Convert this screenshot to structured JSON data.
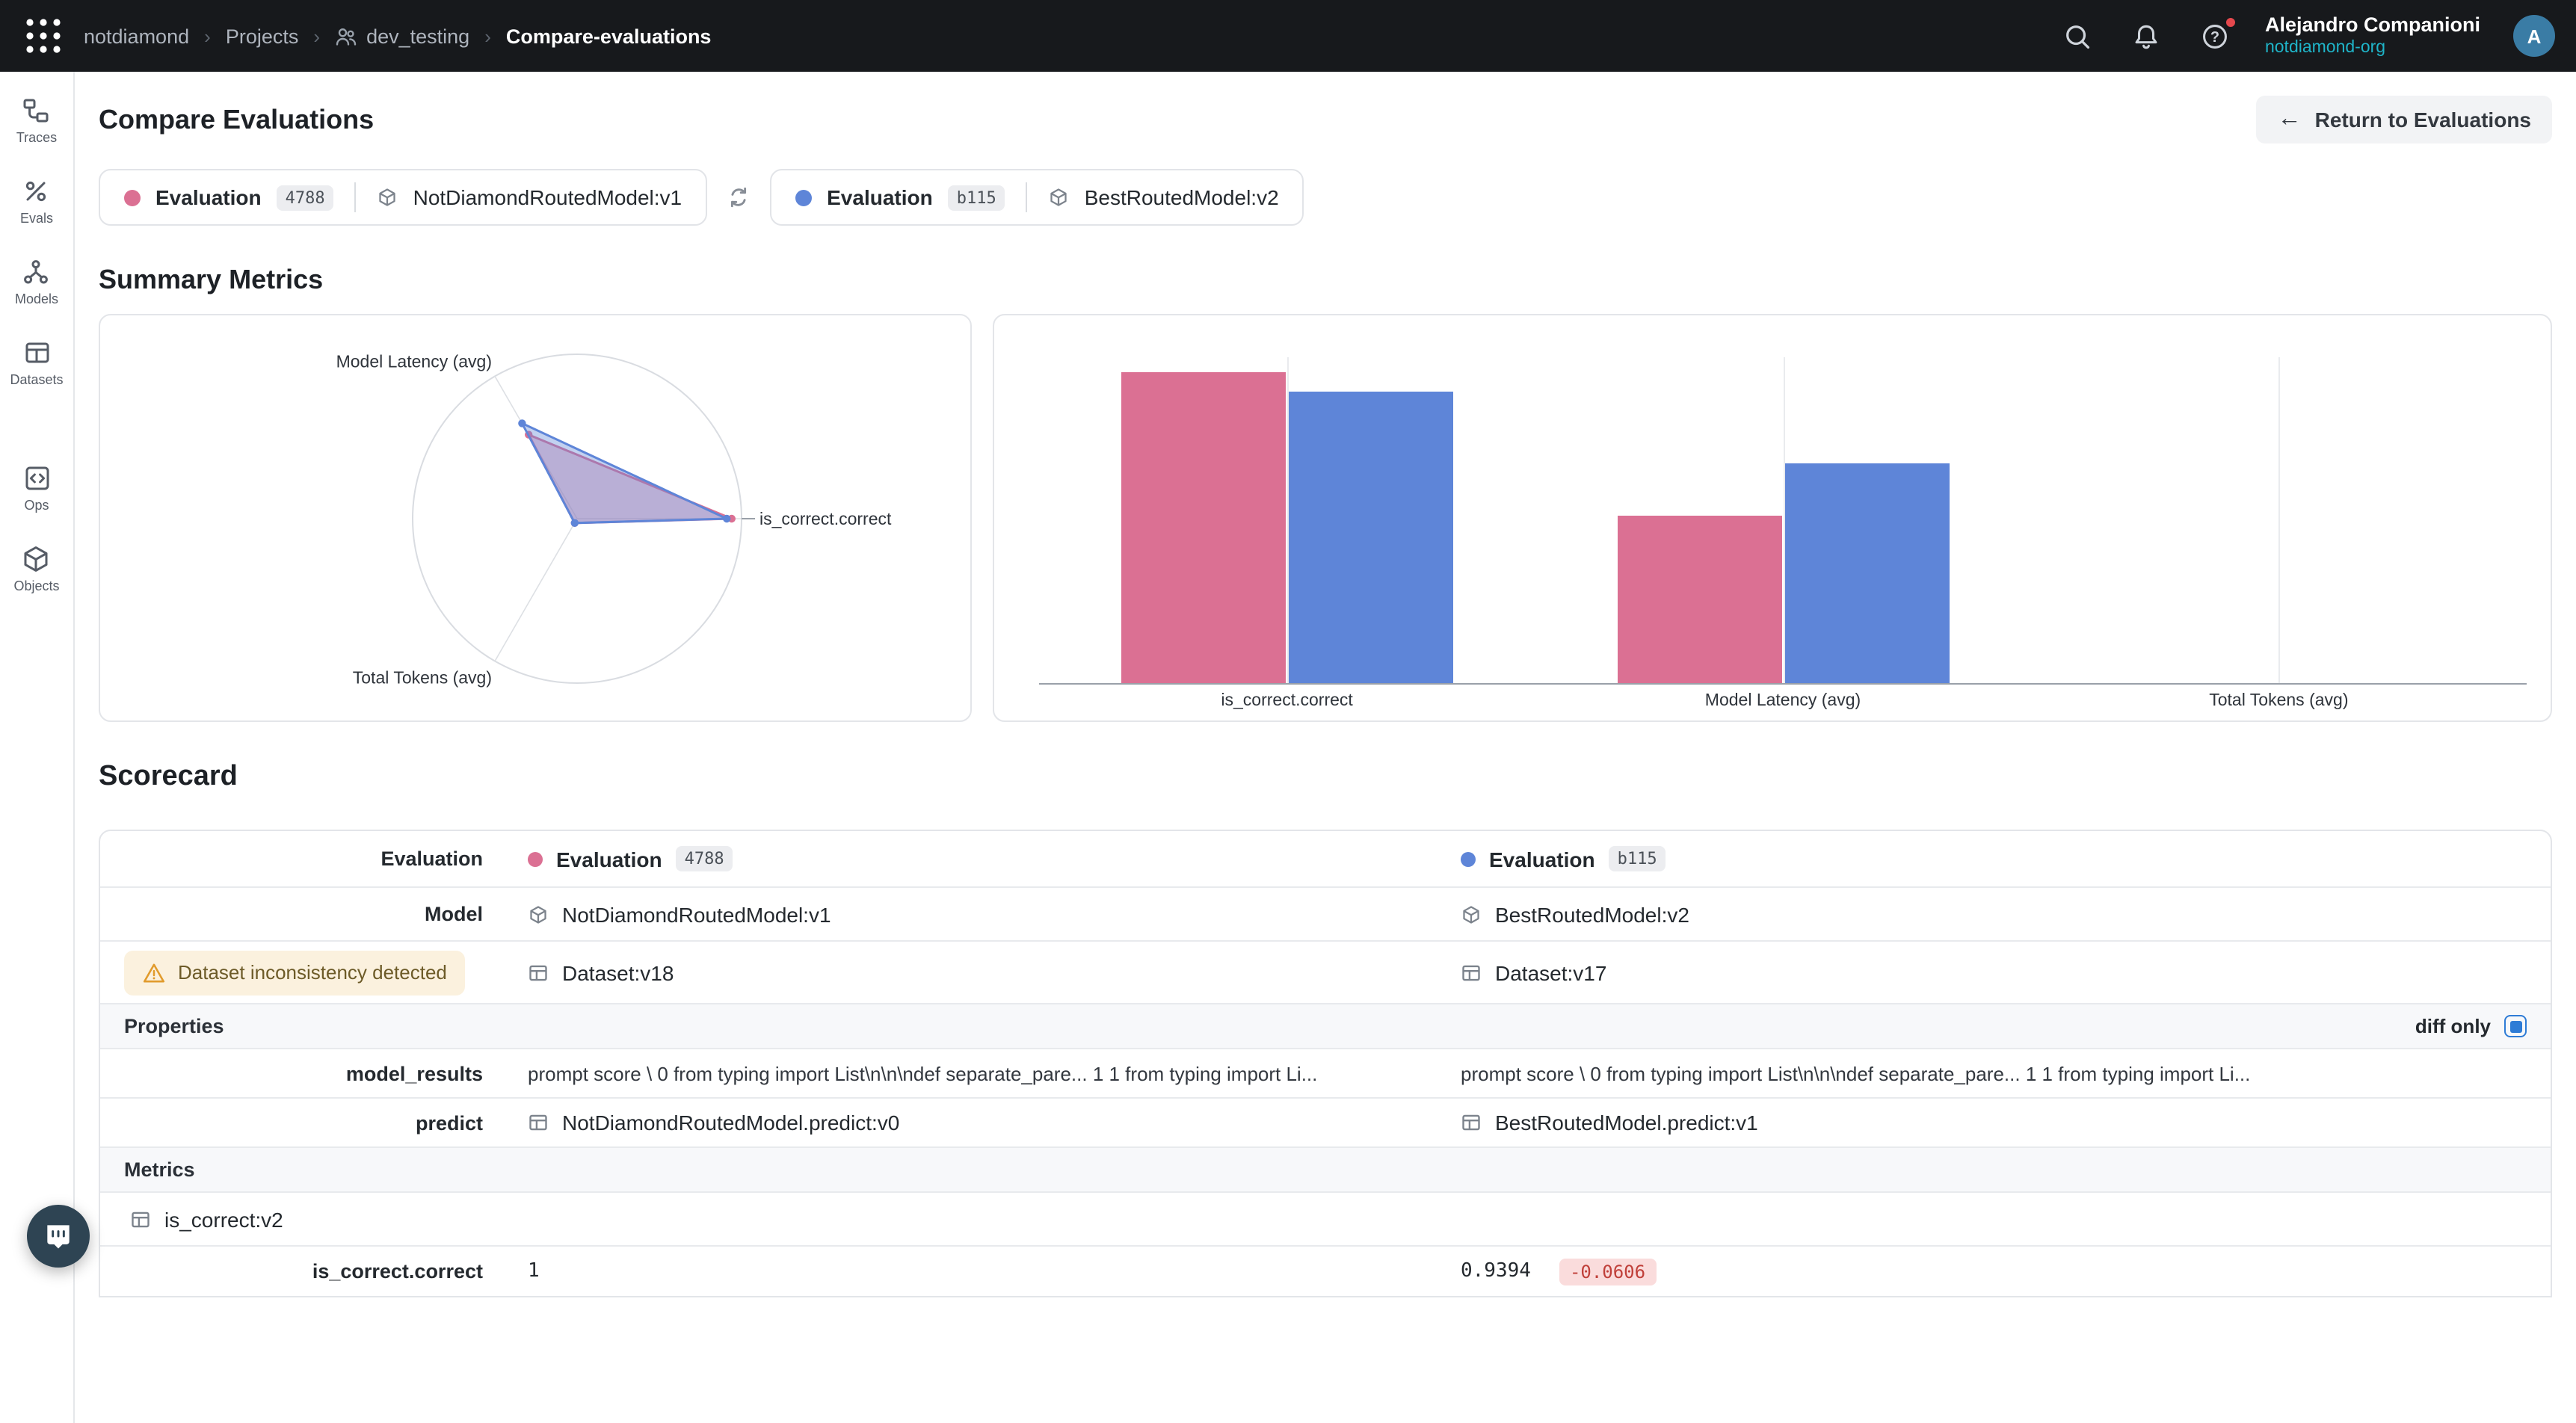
{
  "topbar": {
    "breadcrumb": {
      "org": "notdiamond",
      "projects": "Projects",
      "team": "dev_testing",
      "page": "Compare-evaluations"
    },
    "user": {
      "name": "Alejandro Companioni",
      "org": "notdiamond-org",
      "initial": "A"
    }
  },
  "sidebar": {
    "items": [
      {
        "label": "Traces"
      },
      {
        "label": "Evals"
      },
      {
        "label": "Models"
      },
      {
        "label": "Datasets"
      },
      {
        "label": "Ops"
      },
      {
        "label": "Objects"
      }
    ]
  },
  "header": {
    "title": "Compare Evaluations",
    "return_button": "Return to Evaluations"
  },
  "evaluations": [
    {
      "label": "Evaluation",
      "badge": "4788",
      "model": "NotDiamondRoutedModel:v1",
      "color": "#db7093"
    },
    {
      "label": "Evaluation",
      "badge": "b115",
      "model": "BestRoutedModel:v2",
      "color": "#5e85d8"
    }
  ],
  "sections": {
    "summary": "Summary Metrics",
    "scorecard": "Scorecard"
  },
  "chart_data": [
    {
      "type": "radar",
      "axes": [
        "Model Latency (avg)",
        "is_correct.correct",
        "Total Tokens (avg)"
      ],
      "series": [
        {
          "name": "Evaluation 4788",
          "color": "#db7093",
          "values": [
            0.59,
            0.94,
            0.03
          ]
        },
        {
          "name": "Evaluation b115",
          "color": "#5e85d8",
          "values": [
            0.67,
            0.91,
            0.03
          ]
        }
      ],
      "grid": "outer-circle",
      "legend": "none"
    },
    {
      "type": "bar",
      "categories": [
        "is_correct.correct",
        "Model Latency (avg)",
        "Total Tokens (avg)"
      ],
      "series": [
        {
          "name": "Evaluation 4788",
          "color": "#db7093",
          "values": [
            1.0,
            0.54,
            0.0
          ]
        },
        {
          "name": "Evaluation b115",
          "color": "#5e85d8",
          "values": [
            0.9394,
            0.71,
            0.0
          ]
        }
      ],
      "ylim": [
        0,
        1.05
      ],
      "grid": "vertical-category-lines",
      "legend": "none"
    }
  ],
  "scorecard": {
    "row_labels": {
      "evaluation": "Evaluation",
      "model": "Model",
      "model_results": "model_results",
      "predict": "predict",
      "is_correct_correct": "is_correct.correct"
    },
    "warning": "Dataset inconsistency detected",
    "properties_header": "Properties",
    "diff_only": "diff only",
    "metrics_header": "Metrics",
    "metric_group": "is_correct:v2",
    "cols": [
      {
        "evaluation": "Evaluation",
        "badge": "4788",
        "model": "NotDiamondRoutedModel:v1",
        "dataset": "Dataset:v18",
        "model_results": "prompt score \\ 0 from typing import List\\n\\n\\ndef separate_pare... 1 1 from typing import Li...",
        "predict": "NotDiamondRoutedModel.predict:v0",
        "is_correct": "1"
      },
      {
        "evaluation": "Evaluation",
        "badge": "b115",
        "model": "BestRoutedModel:v2",
        "dataset": "Dataset:v17",
        "model_results": "prompt score \\ 0 from typing import List\\n\\n\\ndef separate_pare... 1 1 from typing import Li...",
        "predict": "BestRoutedModel.predict:v1",
        "is_correct": "0.9394",
        "delta": "-0.0606"
      }
    ]
  }
}
